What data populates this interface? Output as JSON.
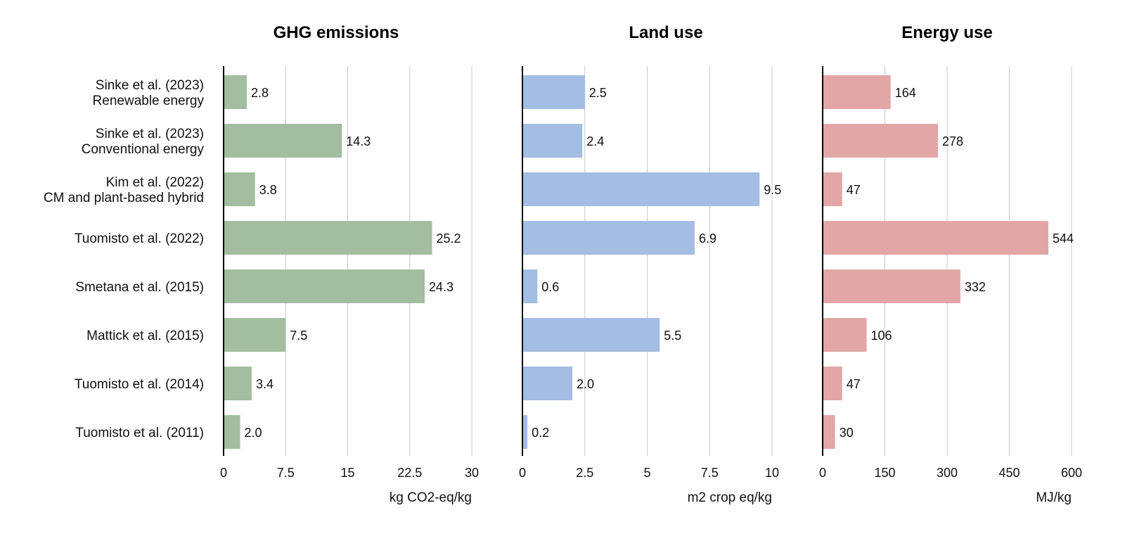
{
  "categories": [
    [
      "Sinke et al. (2023)",
      "Renewable energy"
    ],
    [
      "Sinke et al. (2023)",
      "Conventional energy"
    ],
    [
      "Kim et al. (2022)",
      "CM and plant-based hybrid"
    ],
    [
      "Tuomisto et al. (2022)"
    ],
    [
      "Smetana et al. (2015)"
    ],
    [
      "Mattick et al. (2015)"
    ],
    [
      "Tuomisto et al. (2014)"
    ],
    [
      "Tuomisto et al. (2011)"
    ]
  ],
  "chart_data": [
    {
      "type": "bar",
      "orientation": "horizontal",
      "title": "GHG emissions",
      "xlabel": "kg CO2-eq/kg",
      "xlim": [
        0,
        30
      ],
      "ticks": [
        0,
        7.5,
        15,
        22.5,
        30
      ],
      "tick_labels": [
        "0",
        "7.5",
        "15",
        "22.5",
        "30"
      ],
      "values": [
        2.8,
        14.3,
        3.8,
        25.2,
        24.3,
        7.5,
        3.4,
        2.0
      ],
      "value_labels": [
        "2.8",
        "14.3",
        "3.8",
        "25.2",
        "24.3",
        "7.5",
        "3.4",
        "2.0"
      ],
      "color": "#a2bd9f"
    },
    {
      "type": "bar",
      "orientation": "horizontal",
      "title": "Land use",
      "xlabel": "m2 crop eq/kg",
      "xlim": [
        0,
        10
      ],
      "ticks": [
        0,
        2.5,
        5,
        7.5,
        10
      ],
      "tick_labels": [
        "0",
        "2.5",
        "5",
        "7.5",
        "10"
      ],
      "values": [
        2.5,
        2.4,
        9.5,
        6.9,
        0.6,
        5.5,
        2.0,
        0.2
      ],
      "value_labels": [
        "2.5",
        "2.4",
        "9.5",
        "6.9",
        "0.6",
        "5.5",
        "2.0",
        "0.2"
      ],
      "color": "#a3bde3"
    },
    {
      "type": "bar",
      "orientation": "horizontal",
      "title": "Energy use",
      "xlabel": "MJ/kg",
      "xlim": [
        0,
        600
      ],
      "ticks": [
        0,
        150,
        300,
        450,
        600
      ],
      "tick_labels": [
        "0",
        "150",
        "300",
        "450",
        "600"
      ],
      "values": [
        164,
        278,
        47,
        544,
        332,
        106,
        47,
        30
      ],
      "value_labels": [
        "164",
        "278",
        "47",
        "544",
        "332",
        "106",
        "47",
        "30"
      ],
      "color": "#e2a6a6"
    }
  ]
}
